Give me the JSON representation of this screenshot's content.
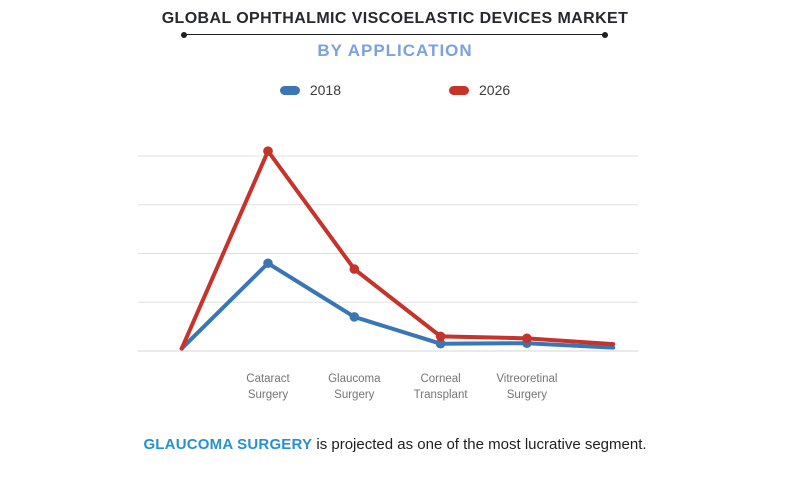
{
  "header": {
    "title": "GLOBAL OPHTHALMIC VISCOELASTIC DEVICES MARKET",
    "subtitle": "BY APPLICATION"
  },
  "chart_data": {
    "type": "line",
    "title": "Global Ophthalmic Viscoelastic Devices Market by Application",
    "categories": [
      "Cataract Surgery",
      "Glaucoma Surgery",
      "Corneal Transplant",
      "Vitreoretinal Surgery"
    ],
    "series": [
      {
        "name": "2018",
        "color": "#3a76b5",
        "edge_start": 0.05,
        "values": [
          1.8,
          0.7,
          0.15,
          0.16
        ],
        "edge_end": 0.07
      },
      {
        "name": "2026",
        "color": "#c5332b",
        "edge_start": 0.05,
        "values": [
          4.1,
          1.68,
          0.3,
          0.26
        ],
        "edge_end": 0.14
      }
    ],
    "xlabel": "",
    "ylabel": "",
    "y_axis_tick_labels": "none (unlabeled relative scale, 1 unit per gridline interval)",
    "ylim": [
      0,
      4.5
    ],
    "gridlines": "horizontal only, 5 lines including baseline",
    "legend_position": "top center",
    "notes": "Both lines start and end at unlabeled edge points near the baseline; markers only on the four labeled categories."
  },
  "caption": {
    "highlight": "GLAUCOMA SURGERY",
    "text": " is projected as one of the most lucrative segment."
  }
}
